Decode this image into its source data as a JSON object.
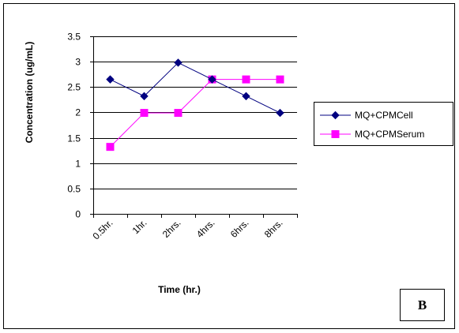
{
  "chart_data": {
    "type": "line",
    "categories": [
      "0.5hr.",
      "1hr.",
      "2hrs.",
      "4hrs.",
      "6hrs.",
      "8hrs."
    ],
    "series": [
      {
        "name": "MQ+CPMCell",
        "values": [
          2.65,
          2.32,
          2.98,
          2.65,
          2.32,
          1.99
        ],
        "color": "#000080",
        "marker": "diamond"
      },
      {
        "name": "MQ+CPMSerum",
        "values": [
          1.32,
          1.99,
          1.99,
          2.65,
          2.65,
          2.65
        ],
        "color": "#FF00FF",
        "marker": "square"
      }
    ],
    "title": "",
    "xlabel": "Time (hr.)",
    "ylabel": "Concentration (ug/mL)",
    "ylim": [
      0,
      3.5
    ],
    "yticks": [
      "0",
      "0.5",
      "1",
      "1.5",
      "2",
      "2.5",
      "3",
      "3.5"
    ],
    "grid": true,
    "legend_position": "right"
  },
  "panel_label": "B"
}
